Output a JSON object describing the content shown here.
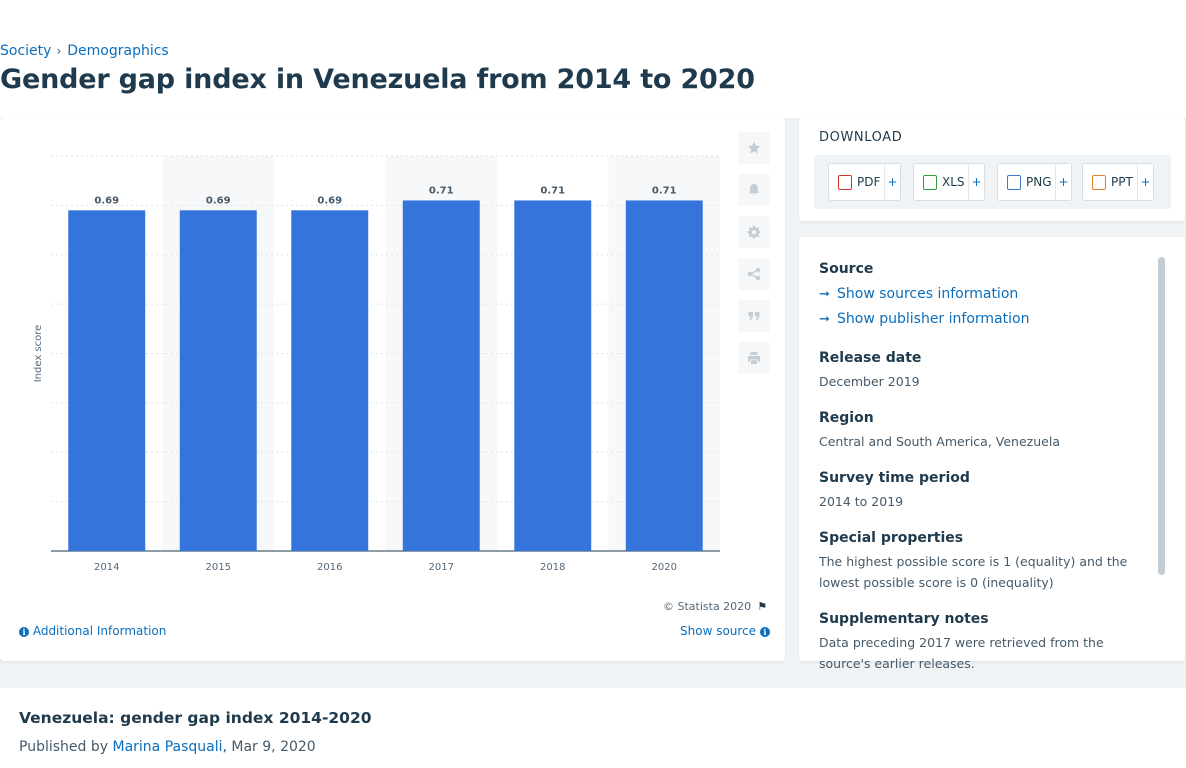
{
  "breadcrumb": {
    "items": [
      "Society",
      "Demographics"
    ],
    "separator": "›"
  },
  "page_title": "Gender gap index in Venezuela from 2014 to 2020",
  "chart_card": {
    "copyright": "© Statista 2020",
    "additional_info": "Additional Information",
    "show_source": "Show source",
    "tools": [
      "star-icon",
      "bell-icon",
      "gear-icon",
      "share-icon",
      "quote-icon",
      "print-icon"
    ]
  },
  "chart_data": {
    "type": "bar",
    "categories": [
      "2014",
      "2015",
      "2016",
      "2017",
      "2018",
      "2020"
    ],
    "values": [
      0.69,
      0.69,
      0.69,
      0.71,
      0.71,
      0.71
    ],
    "data_labels": [
      "0.69",
      "0.69",
      "0.69",
      "0.71",
      "0.71",
      "0.71"
    ],
    "title": "",
    "xlabel": "",
    "ylabel": "Index score",
    "ylim": [
      0,
      0.8
    ],
    "grid": true,
    "bar_color": "#3474db"
  },
  "download": {
    "title": "DOWNLOAD",
    "buttons": [
      {
        "label": "PDF",
        "plus": "+",
        "icon": "pdf-file-icon",
        "color": "#d9322a"
      },
      {
        "label": "XLS",
        "plus": "+",
        "icon": "xls-file-icon",
        "color": "#2f9a3a"
      },
      {
        "label": "PNG",
        "plus": "+",
        "icon": "png-file-icon",
        "color": "#3a78c9"
      },
      {
        "label": "PPT",
        "plus": "+",
        "icon": "ppt-file-icon",
        "color": "#e0822a"
      }
    ]
  },
  "meta": {
    "source_label": "Source",
    "show_sources": "Show sources information",
    "show_publisher": "Show publisher information",
    "release_date_label": "Release date",
    "release_date": "December 2019",
    "region_label": "Region",
    "region": "Central and South America, Venezuela",
    "survey_period_label": "Survey time period",
    "survey_period": "2014 to 2019",
    "special_label": "Special properties",
    "special": "The highest possible score is 1 (equality) and the lowest possible score is 0 (inequality)",
    "notes_label": "Supplementary notes",
    "notes": "Data preceding 2017 were retrieved from the source's earlier releases."
  },
  "bottom": {
    "title": "Venezuela: gender gap index 2014-2020",
    "published_by": "Published by",
    "author": "Marina Pasquali",
    "date": ", Mar 9, 2020"
  }
}
